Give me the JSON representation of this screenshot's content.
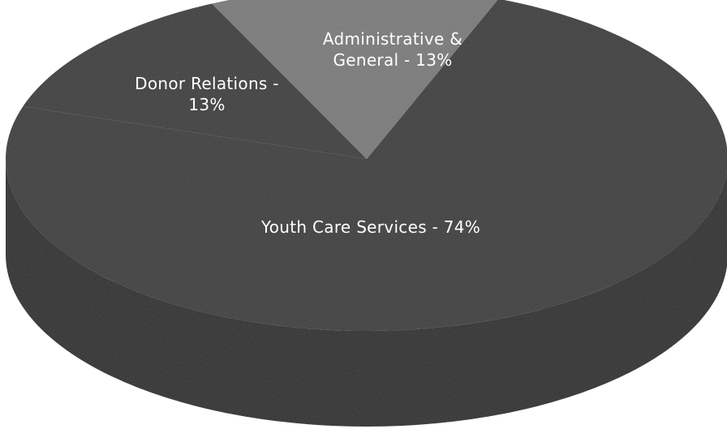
{
  "chart_data": {
    "type": "pie",
    "style": "3d-tilted",
    "slices": [
      {
        "label_lines": [
          "Youth Care Services - 74%"
        ],
        "value": 74,
        "color": "#3d3d3d"
      },
      {
        "label_lines": [
          "Donor Relations -",
          "13%"
        ],
        "value": 13,
        "color": "#3d3d3d"
      },
      {
        "label_lines": [
          "Administrative &",
          "General - 13%"
        ],
        "value": 13,
        "color": "#7c7c7c"
      }
    ],
    "side_color": "#2e2e2e",
    "background": "#ffffff"
  }
}
